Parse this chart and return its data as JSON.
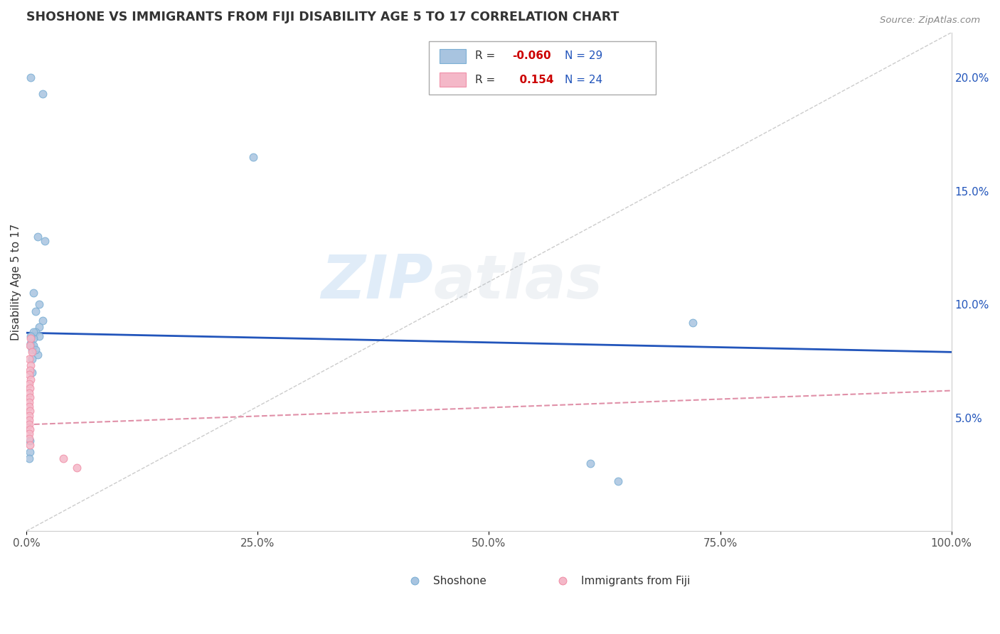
{
  "title": "SHOSHONE VS IMMIGRANTS FROM FIJI DISABILITY AGE 5 TO 17 CORRELATION CHART",
  "source": "Source: ZipAtlas.com",
  "ylabel": "Disability Age 5 to 17",
  "xlim": [
    0.0,
    1.0
  ],
  "ylim": [
    0.0,
    0.22
  ],
  "x_ticks": [
    0.0,
    0.25,
    0.5,
    0.75,
    1.0
  ],
  "x_tick_labels": [
    "0.0%",
    "25.0%",
    "50.0%",
    "75.0%",
    "100.0%"
  ],
  "y_ticks": [
    0.05,
    0.1,
    0.15,
    0.2
  ],
  "y_tick_labels": [
    "5.0%",
    "10.0%",
    "15.0%",
    "20.0%"
  ],
  "watermark_zip": "ZIP",
  "watermark_atlas": "atlas",
  "shoshone_points": [
    [
      0.005,
      0.2
    ],
    [
      0.018,
      0.193
    ],
    [
      0.245,
      0.165
    ],
    [
      0.012,
      0.13
    ],
    [
      0.02,
      0.128
    ],
    [
      0.008,
      0.105
    ],
    [
      0.014,
      0.1
    ],
    [
      0.01,
      0.097
    ],
    [
      0.018,
      0.093
    ],
    [
      0.014,
      0.09
    ],
    [
      0.01,
      0.088
    ],
    [
      0.014,
      0.086
    ],
    [
      0.008,
      0.085
    ],
    [
      0.005,
      0.083
    ],
    [
      0.008,
      0.088
    ],
    [
      0.005,
      0.086
    ],
    [
      0.006,
      0.08
    ],
    [
      0.005,
      0.082
    ],
    [
      0.012,
      0.078
    ],
    [
      0.006,
      0.076
    ],
    [
      0.008,
      0.082
    ],
    [
      0.01,
      0.08
    ],
    [
      0.006,
      0.07
    ],
    [
      0.004,
      0.04
    ],
    [
      0.72,
      0.092
    ],
    [
      0.61,
      0.03
    ],
    [
      0.64,
      0.022
    ],
    [
      0.004,
      0.035
    ],
    [
      0.003,
      0.032
    ]
  ],
  "fiji_points": [
    [
      0.005,
      0.085
    ],
    [
      0.004,
      0.082
    ],
    [
      0.006,
      0.079
    ],
    [
      0.003,
      0.076
    ],
    [
      0.005,
      0.073
    ],
    [
      0.004,
      0.071
    ],
    [
      0.003,
      0.069
    ],
    [
      0.005,
      0.067
    ],
    [
      0.003,
      0.065
    ],
    [
      0.004,
      0.063
    ],
    [
      0.003,
      0.061
    ],
    [
      0.004,
      0.059
    ],
    [
      0.003,
      0.057
    ],
    [
      0.003,
      0.055
    ],
    [
      0.004,
      0.053
    ],
    [
      0.003,
      0.051
    ],
    [
      0.003,
      0.049
    ],
    [
      0.003,
      0.047
    ],
    [
      0.004,
      0.045
    ],
    [
      0.003,
      0.043
    ],
    [
      0.003,
      0.041
    ],
    [
      0.004,
      0.038
    ],
    [
      0.04,
      0.032
    ],
    [
      0.055,
      0.028
    ]
  ],
  "shoshone_color": "#a8c4e0",
  "fiji_color": "#f4b8c8",
  "shoshone_scatter_edge": "#7bafd4",
  "fiji_scatter_edge": "#f090a8",
  "shoshone_line_color": "#2255bb",
  "fiji_line_color": "#e090a8",
  "shoshone_line_y0": 0.0875,
  "shoshone_line_y1": 0.079,
  "fiji_line_y0": 0.047,
  "fiji_line_y1": 0.062,
  "diag_line_color": "#cccccc",
  "background_color": "#ffffff",
  "grid_color": "#e0e0e0",
  "R_shoshone": "-0.060",
  "R_fiji": "0.154",
  "N_shoshone": 29,
  "N_fiji": 24,
  "R_color": "#cc0000",
  "N_color": "#2255bb",
  "legend_label_color": "#333333"
}
